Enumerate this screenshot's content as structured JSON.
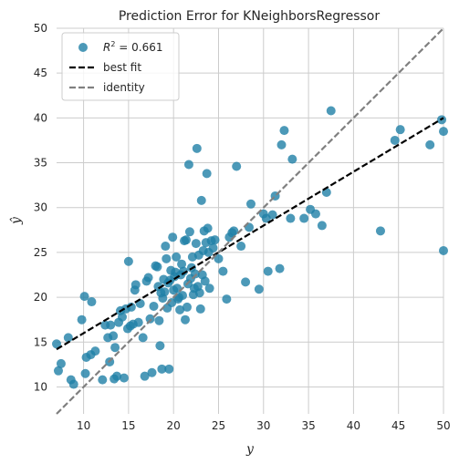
{
  "chart_data": {
    "type": "scatter",
    "title": "Prediction Error for KNeighborsRegressor",
    "xlabel": "y",
    "ylabel": "ŷ",
    "xlim": [
      7,
      50
    ],
    "ylim": [
      7,
      50
    ],
    "xticks": [
      10,
      15,
      20,
      25,
      30,
      35,
      40,
      45,
      50
    ],
    "yticks": [
      10,
      15,
      20,
      25,
      30,
      35,
      40,
      45,
      50
    ],
    "grid": true,
    "legend_position": "top-left",
    "legend": {
      "r2_prefix": "R",
      "r2_sup": "2",
      "r2_suffix": " = 0.661",
      "best_fit": "best fit",
      "identity": "identity"
    },
    "colors": {
      "points": "#1f7fa6",
      "best_fit": "#000000",
      "identity": "#808080",
      "grid": "#cccccc",
      "background": "#ffffff"
    },
    "best_fit": {
      "slope": 0.6,
      "intercept": 10.0
    },
    "points": [
      [
        7.0,
        14.8
      ],
      [
        7.2,
        11.8
      ],
      [
        7.5,
        12.6
      ],
      [
        8.3,
        15.5
      ],
      [
        8.6,
        10.8
      ],
      [
        8.9,
        10.3
      ],
      [
        9.8,
        17.5
      ],
      [
        10.1,
        20.1
      ],
      [
        10.2,
        11.5
      ],
      [
        10.3,
        13.3
      ],
      [
        10.8,
        13.6
      ],
      [
        10.9,
        19.5
      ],
      [
        11.3,
        14.0
      ],
      [
        12.1,
        10.8
      ],
      [
        12.4,
        16.9
      ],
      [
        12.7,
        15.5
      ],
      [
        12.9,
        12.8
      ],
      [
        13.0,
        16.9
      ],
      [
        13.3,
        15.7
      ],
      [
        13.4,
        10.9
      ],
      [
        13.5,
        14.4
      ],
      [
        13.7,
        11.2
      ],
      [
        13.9,
        17.2
      ],
      [
        14.1,
        18.5
      ],
      [
        14.3,
        17.8
      ],
      [
        14.5,
        11.0
      ],
      [
        14.7,
        18.7
      ],
      [
        14.9,
        16.5
      ],
      [
        15.0,
        24.0
      ],
      [
        15.2,
        16.8
      ],
      [
        15.3,
        18.9
      ],
      [
        15.5,
        17.0
      ],
      [
        15.7,
        20.8
      ],
      [
        15.8,
        21.4
      ],
      [
        16.1,
        17.2
      ],
      [
        16.3,
        19.3
      ],
      [
        16.6,
        15.5
      ],
      [
        16.8,
        11.2
      ],
      [
        17.0,
        21.8
      ],
      [
        17.2,
        22.2
      ],
      [
        17.4,
        17.6
      ],
      [
        17.6,
        11.6
      ],
      [
        17.8,
        19.0
      ],
      [
        18.0,
        23.5
      ],
      [
        18.2,
        23.4
      ],
      [
        18.3,
        21.2
      ],
      [
        18.4,
        17.4
      ],
      [
        18.5,
        14.6
      ],
      [
        18.6,
        20.5
      ],
      [
        18.7,
        12.0
      ],
      [
        18.8,
        19.9
      ],
      [
        18.9,
        22.0
      ],
      [
        19.0,
        20.6
      ],
      [
        19.1,
        25.7
      ],
      [
        19.2,
        24.3
      ],
      [
        19.3,
        18.8
      ],
      [
        19.4,
        21.6
      ],
      [
        19.5,
        12.0
      ],
      [
        19.6,
        21.9
      ],
      [
        19.7,
        23.0
      ],
      [
        19.8,
        19.4
      ],
      [
        19.9,
        26.7
      ],
      [
        20.0,
        20.8
      ],
      [
        20.1,
        22.3
      ],
      [
        20.2,
        22.8
      ],
      [
        20.3,
        24.5
      ],
      [
        20.4,
        21.0
      ],
      [
        20.5,
        19.8
      ],
      [
        20.6,
        20.0
      ],
      [
        20.7,
        18.6
      ],
      [
        20.8,
        22.5
      ],
      [
        20.9,
        23.7
      ],
      [
        21.0,
        20.2
      ],
      [
        21.1,
        22.9
      ],
      [
        21.2,
        26.3
      ],
      [
        21.3,
        17.5
      ],
      [
        21.4,
        26.4
      ],
      [
        21.5,
        18.9
      ],
      [
        21.6,
        21.5
      ],
      [
        21.7,
        34.8
      ],
      [
        21.8,
        27.3
      ],
      [
        21.9,
        22.1
      ],
      [
        22.0,
        23.3
      ],
      [
        22.1,
        24.5
      ],
      [
        22.2,
        20.3
      ],
      [
        22.3,
        21.0
      ],
      [
        22.4,
        22.6
      ],
      [
        22.5,
        26.0
      ],
      [
        22.6,
        36.6
      ],
      [
        22.7,
        21.2
      ],
      [
        22.8,
        24.7
      ],
      [
        22.9,
        20.5
      ],
      [
        23.0,
        18.7
      ],
      [
        23.1,
        30.8
      ],
      [
        23.2,
        22.5
      ],
      [
        23.3,
        25.2
      ],
      [
        23.4,
        27.4
      ],
      [
        23.5,
        21.8
      ],
      [
        23.6,
        26.1
      ],
      [
        23.7,
        33.8
      ],
      [
        23.8,
        27.7
      ],
      [
        23.9,
        25.0
      ],
      [
        24.0,
        21.0
      ],
      [
        24.2,
        26.3
      ],
      [
        24.4,
        25.5
      ],
      [
        24.6,
        26.4
      ],
      [
        25.0,
        24.3
      ],
      [
        25.5,
        22.9
      ],
      [
        25.9,
        19.8
      ],
      [
        26.2,
        26.7
      ],
      [
        26.5,
        27.2
      ],
      [
        26.7,
        27.4
      ],
      [
        27.0,
        34.6
      ],
      [
        27.5,
        25.7
      ],
      [
        28.0,
        21.7
      ],
      [
        28.4,
        27.8
      ],
      [
        28.6,
        30.4
      ],
      [
        29.5,
        20.9
      ],
      [
        30.0,
        29.3
      ],
      [
        30.3,
        28.8
      ],
      [
        30.5,
        22.9
      ],
      [
        31.0,
        29.2
      ],
      [
        31.3,
        31.3
      ],
      [
        31.8,
        23.2
      ],
      [
        32.0,
        37.0
      ],
      [
        32.3,
        38.6
      ],
      [
        33.0,
        28.8
      ],
      [
        33.2,
        35.4
      ],
      [
        34.5,
        28.8
      ],
      [
        35.2,
        29.8
      ],
      [
        35.8,
        29.3
      ],
      [
        36.5,
        28.0
      ],
      [
        37.0,
        31.7
      ],
      [
        37.5,
        40.8
      ],
      [
        43.0,
        27.4
      ],
      [
        44.6,
        37.5
      ],
      [
        45.2,
        38.7
      ],
      [
        48.5,
        37.0
      ],
      [
        49.8,
        39.8
      ],
      [
        50.0,
        25.2
      ],
      [
        50.0,
        38.5
      ]
    ]
  }
}
